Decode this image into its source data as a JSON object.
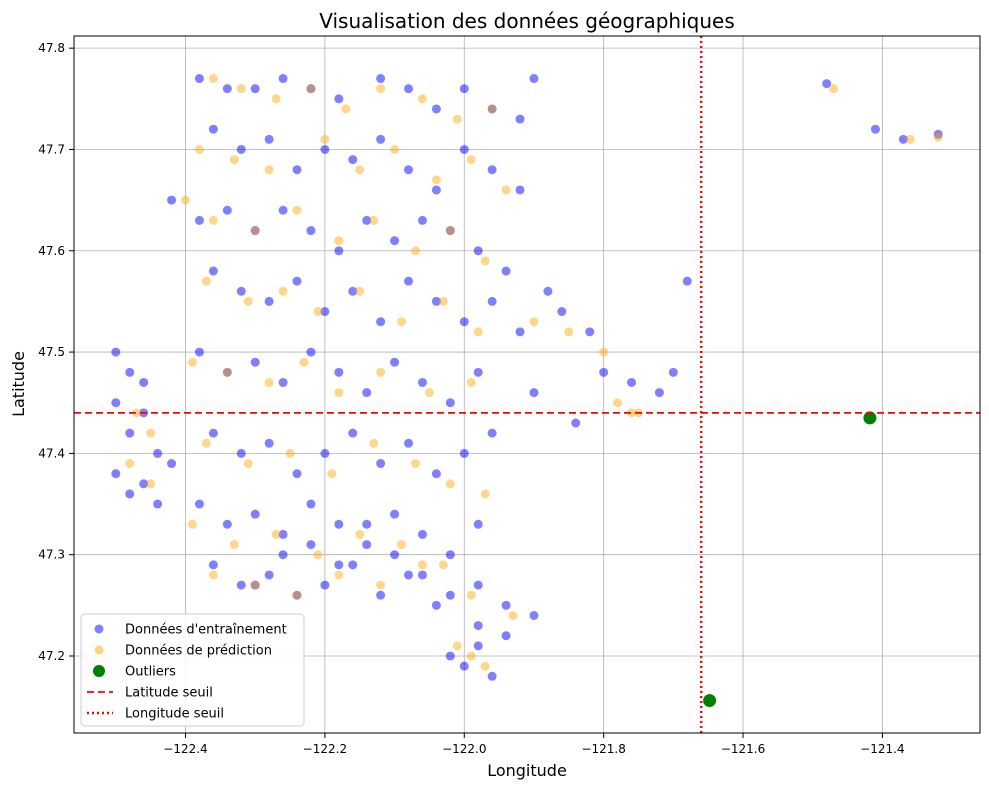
{
  "chart_data": {
    "type": "scatter",
    "title": "Visualisation des données géographiques",
    "xlabel": "Longitude",
    "ylabel": "Latitude",
    "xlim": [
      -122.56,
      -121.26
    ],
    "ylim": [
      47.124,
      47.812
    ],
    "xticks": [
      -122.4,
      -122.2,
      -122.0,
      -121.8,
      -121.6,
      -121.4
    ],
    "xtick_labels": [
      "−122.4",
      "−122.2",
      "−122.0",
      "−121.8",
      "−121.6",
      "−121.4"
    ],
    "yticks": [
      47.2,
      47.3,
      47.4,
      47.5,
      47.6,
      47.7,
      47.8
    ],
    "ytick_labels": [
      "47.2",
      "47.3",
      "47.4",
      "47.5",
      "47.6",
      "47.7",
      "47.8"
    ],
    "grid": true,
    "legend_position": "lower-left",
    "colors": {
      "training": "#0000ff",
      "prediction": "#ffa500",
      "outliers": "#008000",
      "threshold": "#ff0000"
    },
    "series": [
      {
        "name": "Données d'entraînement",
        "marker": "circle",
        "color": "#0000ff",
        "x": [
          -122.38,
          -122.34,
          -122.3,
          -122.26,
          -122.22,
          -122.18,
          -122.12,
          -122.08,
          -122.04,
          -122.0,
          -121.96,
          -121.92,
          -121.9,
          -122.36,
          -122.32,
          -122.28,
          -122.24,
          -122.2,
          -122.16,
          -122.12,
          -122.08,
          -122.04,
          -122.0,
          -121.96,
          -121.92,
          -122.42,
          -122.38,
          -122.34,
          -122.3,
          -122.26,
          -122.22,
          -122.18,
          -122.14,
          -122.1,
          -122.06,
          -122.02,
          -121.98,
          -121.94,
          -121.88,
          -122.36,
          -122.32,
          -122.28,
          -122.24,
          -122.2,
          -122.16,
          -122.12,
          -122.08,
          -122.04,
          -122.0,
          -121.96,
          -121.92,
          -121.86,
          -121.82,
          -122.38,
          -122.34,
          -122.3,
          -122.26,
          -122.22,
          -122.18,
          -122.14,
          -122.1,
          -122.06,
          -122.02,
          -121.98,
          -121.9,
          -121.8,
          -121.76,
          -121.72,
          -122.36,
          -122.32,
          -122.28,
          -122.24,
          -122.2,
          -122.16,
          -122.12,
          -122.08,
          -122.04,
          -122.0,
          -121.96,
          -122.38,
          -122.34,
          -122.3,
          -122.26,
          -122.22,
          -122.18,
          -122.14,
          -122.1,
          -122.06,
          -122.02,
          -121.98,
          -122.36,
          -122.32,
          -122.28,
          -122.24,
          -122.2,
          -122.16,
          -122.12,
          -122.08,
          -122.04,
          -121.98,
          -121.94,
          -121.9,
          -122.3,
          -122.26,
          -122.22,
          -122.18,
          -122.14,
          -122.1,
          -122.06,
          -122.02,
          -121.98,
          -121.94,
          -122.02,
          -122.0,
          -121.98,
          -121.96,
          -122.5,
          -122.48,
          -122.46,
          -122.44,
          -122.5,
          -122.48,
          -122.46,
          -122.44,
          -122.42,
          -122.5,
          -122.48,
          -122.46,
          -121.68,
          -121.48,
          -121.41,
          -121.37,
          -121.32,
          -121.84,
          -121.7
        ],
        "y": [
          47.77,
          47.76,
          47.76,
          47.77,
          47.76,
          47.75,
          47.77,
          47.76,
          47.74,
          47.76,
          47.74,
          47.73,
          47.77,
          47.72,
          47.7,
          47.71,
          47.68,
          47.7,
          47.69,
          47.71,
          47.68,
          47.66,
          47.7,
          47.68,
          47.66,
          47.65,
          47.63,
          47.64,
          47.62,
          47.64,
          47.62,
          47.6,
          47.63,
          47.61,
          47.63,
          47.62,
          47.6,
          47.58,
          47.56,
          47.58,
          47.56,
          47.55,
          47.57,
          47.54,
          47.56,
          47.53,
          47.57,
          47.55,
          47.53,
          47.55,
          47.52,
          47.54,
          47.52,
          47.5,
          47.48,
          47.49,
          47.47,
          47.5,
          47.48,
          47.46,
          47.49,
          47.47,
          47.45,
          47.48,
          47.46,
          47.48,
          47.47,
          47.46,
          47.42,
          47.4,
          47.41,
          47.38,
          47.4,
          47.42,
          47.39,
          47.41,
          47.38,
          47.4,
          47.42,
          47.35,
          47.33,
          47.34,
          47.32,
          47.35,
          47.33,
          47.31,
          47.34,
          47.32,
          47.3,
          47.33,
          47.29,
          47.27,
          47.28,
          47.26,
          47.27,
          47.29,
          47.26,
          47.28,
          47.25,
          47.27,
          47.25,
          47.24,
          47.27,
          47.3,
          47.31,
          47.29,
          47.33,
          47.3,
          47.28,
          47.26,
          47.23,
          47.22,
          47.2,
          47.19,
          47.21,
          47.18,
          47.45,
          47.42,
          47.44,
          47.4,
          47.38,
          47.36,
          47.37,
          47.35,
          47.39,
          47.5,
          47.48,
          47.47,
          47.57,
          47.765,
          47.72,
          47.71,
          47.715,
          47.43,
          47.48
        ]
      },
      {
        "name": "Données de prédiction",
        "marker": "circle",
        "color": "#ffa500",
        "x": [
          -122.36,
          -122.32,
          -122.27,
          -122.22,
          -122.17,
          -122.12,
          -122.06,
          -122.01,
          -121.96,
          -122.38,
          -122.33,
          -122.28,
          -122.2,
          -122.15,
          -122.1,
          -122.04,
          -121.99,
          -121.94,
          -122.4,
          -122.36,
          -122.3,
          -122.24,
          -122.18,
          -122.13,
          -122.07,
          -122.02,
          -121.97,
          -122.37,
          -122.31,
          -122.26,
          -122.21,
          -122.15,
          -122.09,
          -122.03,
          -121.98,
          -121.9,
          -121.85,
          -122.39,
          -122.34,
          -122.28,
          -122.23,
          -122.18,
          -122.12,
          -122.05,
          -121.99,
          -121.78,
          -121.76,
          -122.37,
          -122.31,
          -122.25,
          -122.19,
          -122.13,
          -122.07,
          -122.02,
          -121.97,
          -122.39,
          -122.33,
          -122.27,
          -122.21,
          -122.15,
          -122.09,
          -122.03,
          -122.36,
          -122.3,
          -122.24,
          -122.18,
          -122.12,
          -122.06,
          -121.99,
          -121.93,
          -122.01,
          -121.99,
          -121.97,
          -122.47,
          -122.45,
          -122.48,
          -122.45,
          -121.47,
          -121.36,
          -121.32,
          -121.75,
          -121.8
        ],
        "y": [
          47.77,
          47.76,
          47.75,
          47.76,
          47.74,
          47.76,
          47.75,
          47.73,
          47.74,
          47.7,
          47.69,
          47.68,
          47.71,
          47.68,
          47.7,
          47.67,
          47.69,
          47.66,
          47.65,
          47.63,
          47.62,
          47.64,
          47.61,
          47.63,
          47.6,
          47.62,
          47.59,
          47.57,
          47.55,
          47.56,
          47.54,
          47.56,
          47.53,
          47.55,
          47.52,
          47.53,
          47.52,
          47.49,
          47.48,
          47.47,
          47.49,
          47.46,
          47.48,
          47.46,
          47.47,
          47.45,
          47.44,
          47.41,
          47.39,
          47.4,
          47.38,
          47.41,
          47.39,
          47.37,
          47.36,
          47.33,
          47.31,
          47.32,
          47.3,
          47.32,
          47.31,
          47.29,
          47.28,
          47.27,
          47.26,
          47.28,
          47.27,
          47.29,
          47.26,
          47.24,
          47.21,
          47.2,
          47.19,
          47.44,
          47.42,
          47.39,
          47.37,
          47.76,
          47.71,
          47.712,
          47.44,
          47.5
        ]
      },
      {
        "name": "Outliers",
        "marker": "circle",
        "color": "#008000",
        "x": [
          -121.418,
          -121.648
        ],
        "y": [
          47.435,
          47.156
        ]
      }
    ],
    "reference_lines": [
      {
        "name": "Latitude seuil",
        "orientation": "horizontal",
        "value": 47.44,
        "style": "dashed",
        "color": "#ff0000"
      },
      {
        "name": "Longitude seuil",
        "orientation": "vertical",
        "value": -121.66,
        "style": "dotted",
        "color": "#ff0000"
      }
    ],
    "legend": [
      {
        "label": "Données d'entraînement",
        "kind": "marker",
        "color": "#0000ff"
      },
      {
        "label": "Données de prédiction",
        "kind": "marker",
        "color": "#ffa500"
      },
      {
        "label": "Outliers",
        "kind": "marker",
        "color": "#008000"
      },
      {
        "label": "Latitude seuil",
        "kind": "dashed",
        "color": "#ff0000"
      },
      {
        "label": "Longitude seuil",
        "kind": "dotted",
        "color": "#ff0000"
      }
    ]
  }
}
